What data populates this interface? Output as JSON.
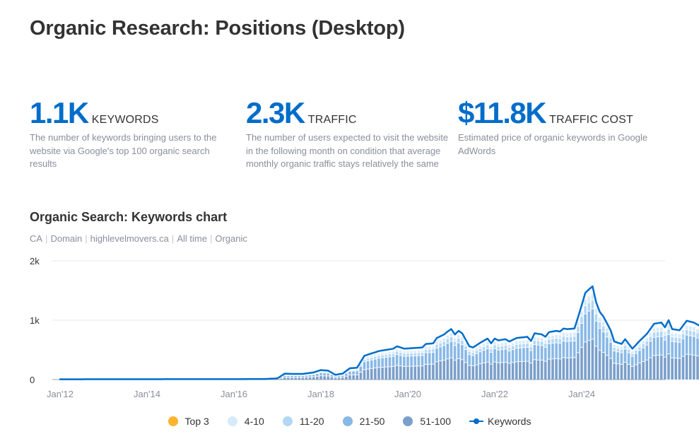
{
  "page": {
    "title": "Organic Research: Positions (Desktop)"
  },
  "metrics": [
    {
      "value": "1.1K",
      "label": "KEYWORDS",
      "description": "The number of keywords bringing users to the website via Google's top 100 organic search results"
    },
    {
      "value": "2.3K",
      "label": "TRAFFIC",
      "description": "The number of users expected to visit the website in the following month on condition that average monthly organic traffic stays relatively the same"
    },
    {
      "value": "$11.8K",
      "label": "TRAFFIC COST",
      "description": "Estimated price of organic keywords in Google AdWords"
    }
  ],
  "chart_header": {
    "title": "Organic Search: Keywords chart",
    "filters": [
      "CA",
      "Domain",
      "highlevelmovers.ca",
      "All time",
      "Organic"
    ]
  },
  "chart_data": {
    "type": "bar",
    "title": "Organic Search: Keywords chart",
    "xlabel": "",
    "ylabel": "",
    "ylim": [
      0,
      2000
    ],
    "yticks": [
      0,
      1000,
      2000
    ],
    "ytick_labels": [
      "0",
      "1k",
      "2k"
    ],
    "xtick_labels": [
      "Jan'12",
      "Jan'14",
      "Jan'16",
      "Jan'18",
      "Jan'20",
      "Jan'22",
      "Jan'24"
    ],
    "x_start": "2012-01",
    "x_unit": "month",
    "grid": true,
    "legend_position": "bottom",
    "stacked": true,
    "colors": {
      "top3": "#fdb42d",
      "p4_10": "#d7eafa",
      "p11_20": "#b3d7f5",
      "p21_50": "#88b8e6",
      "p51_100": "#7a9fcb",
      "keywords": "#006dca",
      "grid": "#e6e7ea",
      "axis": "#9da1aa"
    },
    "series": [
      {
        "name": "Top 3",
        "key": "top3"
      },
      {
        "name": "4-10",
        "key": "p4_10"
      },
      {
        "name": "11-20",
        "key": "p11_20"
      },
      {
        "name": "21-50",
        "key": "p21_50"
      },
      {
        "name": "51-100",
        "key": "p51_100"
      },
      {
        "name": "Keywords",
        "key": "keywords",
        "type": "line"
      }
    ],
    "anchors": [
      [
        0,
        5
      ],
      [
        56,
        8
      ],
      [
        60,
        20
      ],
      [
        62,
        100
      ],
      [
        64,
        95
      ],
      [
        67,
        95
      ],
      [
        70,
        120
      ],
      [
        72,
        160
      ],
      [
        74,
        150
      ],
      [
        76,
        80
      ],
      [
        78,
        100
      ],
      [
        80,
        190
      ],
      [
        82,
        200
      ],
      [
        84,
        400
      ],
      [
        86,
        440
      ],
      [
        88,
        480
      ],
      [
        90,
        500
      ],
      [
        92,
        520
      ],
      [
        93,
        560
      ],
      [
        95,
        520
      ],
      [
        100,
        540
      ],
      [
        101,
        600
      ],
      [
        103,
        610
      ],
      [
        104,
        700
      ],
      [
        106,
        760
      ],
      [
        107,
        810
      ],
      [
        108,
        850
      ],
      [
        109,
        760
      ],
      [
        110,
        820
      ],
      [
        111,
        780
      ],
      [
        113,
        560
      ],
      [
        114,
        540
      ],
      [
        116,
        620
      ],
      [
        118,
        690
      ],
      [
        119,
        610
      ],
      [
        120,
        690
      ],
      [
        121,
        660
      ],
      [
        123,
        680
      ],
      [
        124,
        640
      ],
      [
        126,
        700
      ],
      [
        129,
        720
      ],
      [
        130,
        650
      ],
      [
        131,
        780
      ],
      [
        133,
        760
      ],
      [
        134,
        720
      ],
      [
        135,
        800
      ],
      [
        137,
        820
      ],
      [
        138,
        810
      ],
      [
        139,
        860
      ],
      [
        140,
        850
      ],
      [
        142,
        860
      ],
      [
        143,
        1050
      ],
      [
        144,
        1250
      ],
      [
        145,
        1460
      ],
      [
        146,
        1520
      ],
      [
        147,
        1570
      ],
      [
        148,
        1300
      ],
      [
        149,
        1140
      ],
      [
        150,
        1060
      ],
      [
        152,
        830
      ],
      [
        153,
        640
      ],
      [
        155,
        600
      ],
      [
        156,
        680
      ],
      [
        158,
        520
      ],
      [
        160,
        650
      ],
      [
        162,
        770
      ],
      [
        164,
        940
      ],
      [
        166,
        960
      ],
      [
        167,
        880
      ],
      [
        168,
        1000
      ],
      [
        169,
        850
      ],
      [
        171,
        830
      ],
      [
        173,
        990
      ],
      [
        175,
        960
      ],
      [
        177,
        890
      ],
      [
        179,
        1000
      ],
      [
        181,
        1080
      ],
      [
        183,
        1110
      ],
      [
        184,
        1380
      ],
      [
        185,
        1430
      ],
      [
        186,
        1370
      ],
      [
        187,
        1200
      ],
      [
        188,
        1100
      ],
      [
        190,
        960
      ],
      [
        192,
        850
      ],
      [
        193,
        900
      ],
      [
        194,
        1010
      ],
      [
        196,
        1080
      ],
      [
        197,
        1130
      ],
      [
        199,
        1130
      ]
    ],
    "band_ratios": {
      "top3": 0.0,
      "p4_10": 0.08,
      "p11_20": 0.1,
      "p21_50": 0.35,
      "p51_100": 0.47
    },
    "x_end": "2025-10"
  },
  "legend": [
    "Top 3",
    "4-10",
    "11-20",
    "21-50",
    "51-100",
    "Keywords"
  ]
}
